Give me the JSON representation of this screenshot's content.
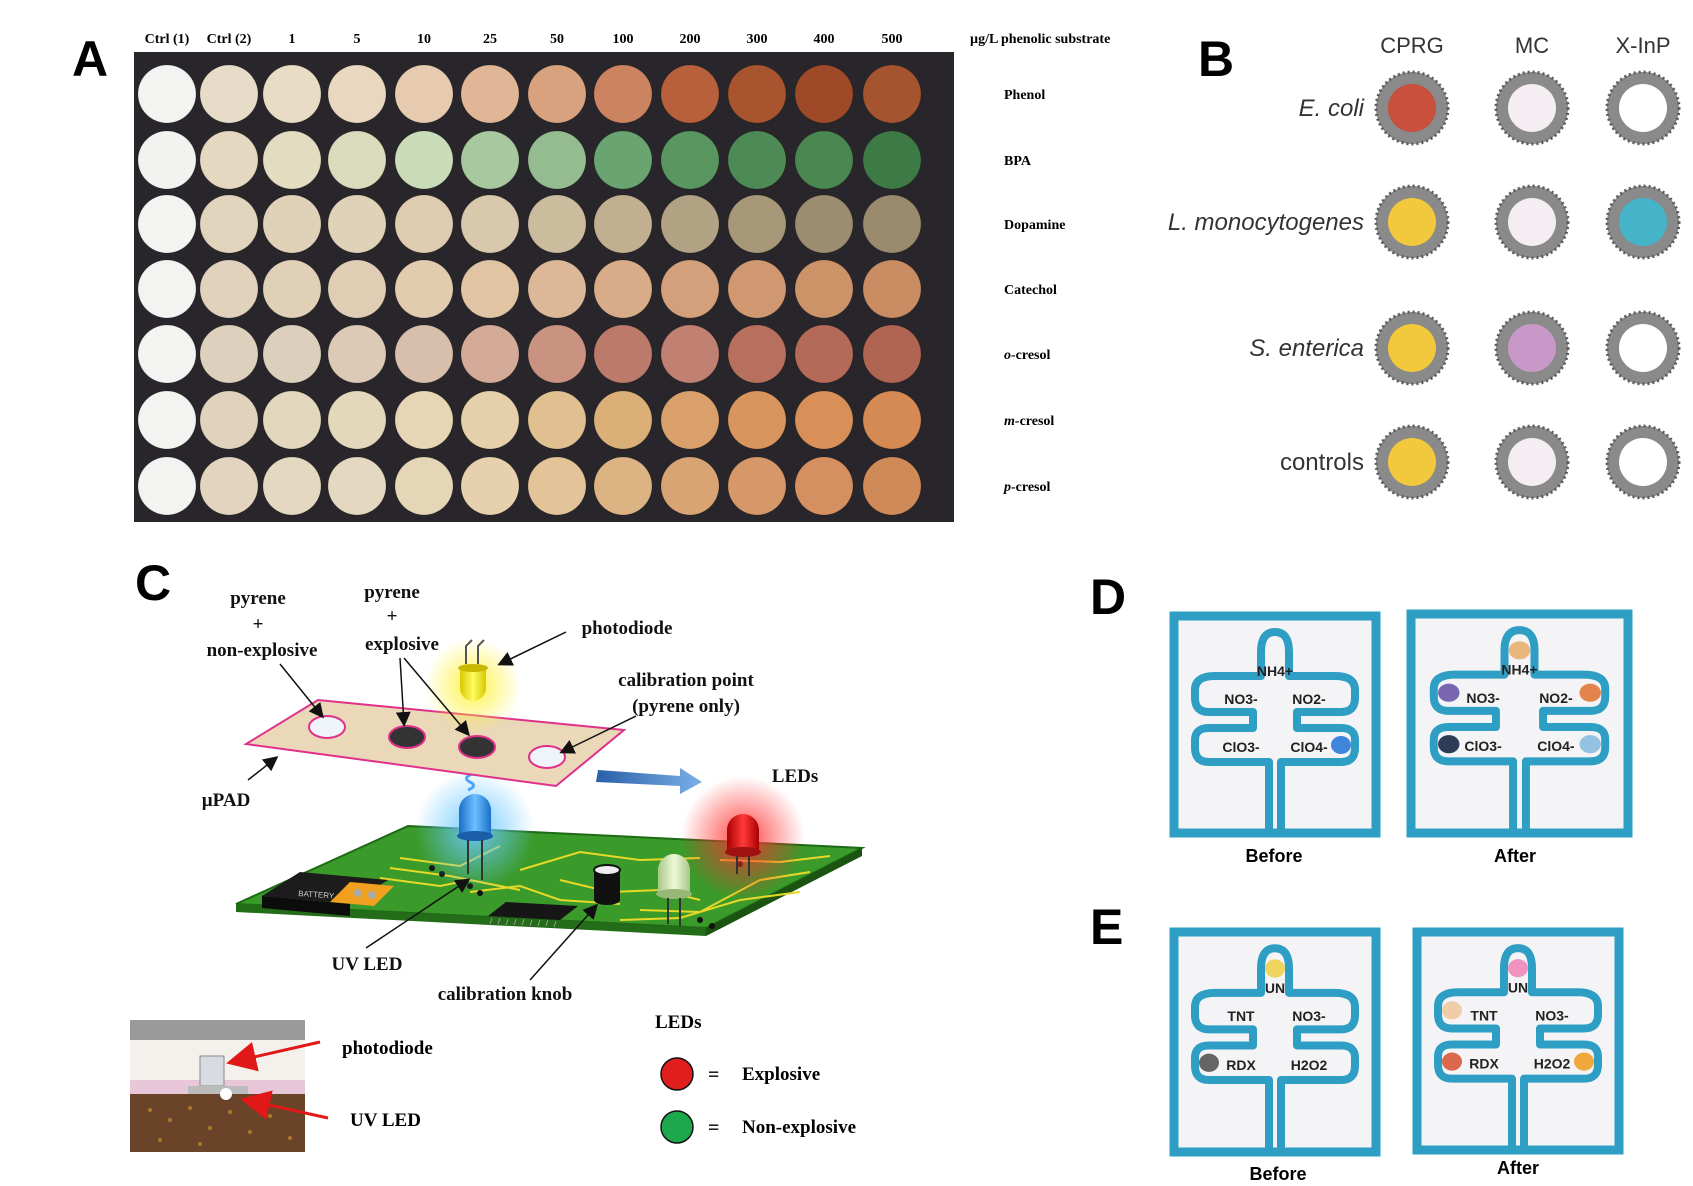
{
  "panel_a": {
    "letter": "A",
    "columns": [
      "Ctrl (1)",
      "Ctrl (2)",
      "1",
      "5",
      "10",
      "25",
      "50",
      "100",
      "200",
      "300",
      "400",
      "500"
    ],
    "unit_label": "µg/L phenolic substrate",
    "rows": [
      {
        "prefix": "",
        "name": "Phenol",
        "hex": [
          "#f3f3f1",
          "#e6dcc8",
          "#e9dcc5",
          "#ead7bf",
          "#e6cbb0",
          "#e1b696",
          "#d8a27e",
          "#cc8460",
          "#b8603c",
          "#a8542e",
          "#9e4a28",
          "#a45530"
        ]
      },
      {
        "prefix": "",
        "name": "BPA",
        "hex": [
          "#f2f2f0",
          "#e4d8c0",
          "#e2dcc0",
          "#d8dcbc",
          "#cadcb8",
          "#a8c8a0",
          "#94bc90",
          "#6aa470",
          "#5a9660",
          "#4e8a56",
          "#4a8650",
          "#3e7a46"
        ]
      },
      {
        "prefix": "",
        "name": "Dopamine",
        "hex": [
          "#f3f3f1",
          "#e0d4bc",
          "#e0d2b8",
          "#e0d2b8",
          "#ddccb0",
          "#d8c8ac",
          "#ccbc9e",
          "#c0b090",
          "#b0a282",
          "#a8987a",
          "#9c8c70",
          "#9a8a6e"
        ]
      },
      {
        "prefix": "",
        "name": "Catechol",
        "hex": [
          "#f3f3f1",
          "#e0d2bc",
          "#e0d0b8",
          "#e0ceb4",
          "#e2ccb0",
          "#e0c4a4",
          "#dcb898",
          "#d8ac88",
          "#d4a07c",
          "#cf9870",
          "#cc9268",
          "#ca8c62"
        ]
      },
      {
        "prefix": "o-",
        "name": "cresol",
        "hex": [
          "#f3f3f1",
          "#ddd0bc",
          "#dcd0bc",
          "#dccab6",
          "#d8bfac",
          "#d4aa98",
          "#ca9280",
          "#bc7a6a",
          "#c08072",
          "#b8705e",
          "#b46a58",
          "#b06452"
        ]
      },
      {
        "prefix": "m-",
        "name": "cresol",
        "hex": [
          "#f3f3f1",
          "#e0d2bc",
          "#e2d6bc",
          "#e4d8bc",
          "#e6d6b6",
          "#e6d0ac",
          "#e0c090",
          "#dab078",
          "#daa06c",
          "#d8965e",
          "#d89058",
          "#d48a52"
        ]
      },
      {
        "prefix": "p-",
        "name": "cresol",
        "hex": [
          "#f3f3f1",
          "#e2d4be",
          "#e4d8c0",
          "#e4d8c0",
          "#e6d6b8",
          "#e6d0ae",
          "#e2c498",
          "#dcb484",
          "#d8a474",
          "#d69868",
          "#d49060",
          "#d08a58"
        ]
      }
    ]
  },
  "panel_b": {
    "letter": "B",
    "columns": [
      "CPRG",
      "MC",
      "X-InP"
    ],
    "rows": [
      {
        "name": "E. coli",
        "italic": true,
        "fills": [
          "#c8503c",
          "#f4eef2",
          "#ffffff"
        ]
      },
      {
        "name": "L. monocytogenes",
        "italic": true,
        "fills": [
          "#f2c83c",
          "#f4eef2",
          "#46b4c8"
        ]
      },
      {
        "name": "S. enterica",
        "italic": true,
        "fills": [
          "#f2c83c",
          "#c898c8",
          "#ffffff"
        ]
      },
      {
        "name": "controls",
        "italic": false,
        "fills": [
          "#f2c83c",
          "#f4eef2",
          "#ffffff"
        ]
      }
    ]
  },
  "panel_c": {
    "letter": "C",
    "label_pyrene_nonexp": [
      "pyrene",
      "+",
      "non-explosive"
    ],
    "label_pyrene_exp": [
      "pyrene",
      "+",
      "explosive"
    ],
    "label_photodiode": "photodiode",
    "label_calibration": [
      "calibration point",
      "(pyrene only)"
    ],
    "label_upad": "µPAD",
    "label_leds": "LEDs",
    "label_uv_led": "UV LED",
    "label_knob": "calibration knob",
    "battery_text": "BATTERY",
    "photo_label_photodiode": "photodiode",
    "photo_label_uvled": "UV LED",
    "legend_title": "LEDs",
    "legend": [
      {
        "color": "#e01e1e",
        "eq": "=",
        "text": "Explosive"
      },
      {
        "color": "#1ea84e",
        "eq": "=",
        "text": "Non-explosive"
      }
    ]
  },
  "panel_d": {
    "letter": "D",
    "before_label": "Before",
    "after_label": "After",
    "spot_labels": {
      "top": "NH4+",
      "ml": "NO3-",
      "mr": "NO2-",
      "bl": "ClO3-",
      "br": "ClO4-"
    }
  },
  "panel_e": {
    "letter": "E",
    "before_label": "Before",
    "after_label": "After",
    "spot_labels": {
      "top": "UN",
      "ml": "TNT",
      "mr": "NO3-",
      "bl": "RDX",
      "br": "H2O2"
    }
  },
  "colors": {
    "channel_blue": "#2e9ec4",
    "board_green": "#3a9a2a",
    "upad_fill": "#ead8b8",
    "upad_border": "#e0308a"
  }
}
